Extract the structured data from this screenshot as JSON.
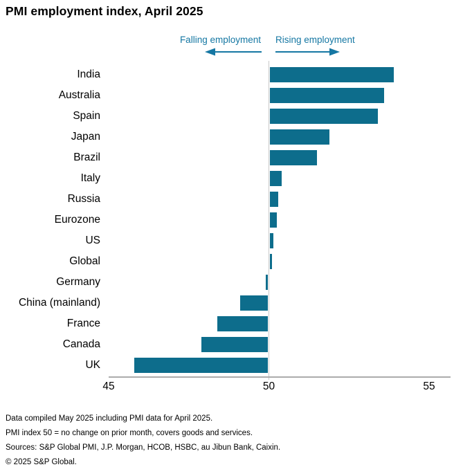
{
  "title": "PMI employment index, April 2025",
  "annotations": {
    "falling_label": "Falling employment",
    "rising_label": "Rising employment"
  },
  "chart_data": {
    "type": "bar",
    "orientation": "horizontal",
    "title": "PMI employment index, April 2025",
    "baseline": 50,
    "categories": [
      "India",
      "Australia",
      "Spain",
      "Japan",
      "Brazil",
      "Italy",
      "Russia",
      "Eurozone",
      "US",
      "Global",
      "Germany",
      "China (mainland)",
      "France",
      "Canada",
      "UK"
    ],
    "values": [
      53.9,
      53.6,
      53.4,
      51.9,
      51.5,
      50.4,
      50.3,
      50.25,
      50.15,
      50.1,
      49.9,
      49.1,
      48.4,
      47.9,
      45.8
    ],
    "xticks": [
      45,
      50,
      55
    ],
    "xlim": [
      45,
      55.6
    ],
    "grid": "single vertical reference line at 50",
    "legend": "none",
    "xlabel": "",
    "ylabel": ""
  },
  "footer": {
    "lines": [
      "Data compiled May 2025 including PMI data for April 2025.",
      "PMI index 50 = no change on prior month, covers goods and services.",
      "Sources: S&P Global PMI, J.P. Morgan, HCOB, HSBC, au Jibun Bank, Caixin.",
      "© 2025 S&P Global."
    ]
  },
  "colors": {
    "bar": "#0d6d8c",
    "annotation": "#1577a3",
    "axis_line": "#ababab",
    "gridline": "#c9c9c9",
    "text": "#000000"
  }
}
